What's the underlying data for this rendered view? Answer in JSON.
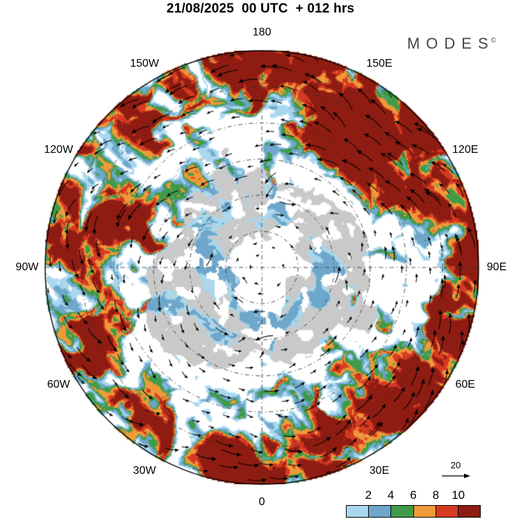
{
  "header": {
    "title": "21/08/2025  00 UTC  + 012 hrs"
  },
  "brand": {
    "text": "MODES",
    "symbol": "©"
  },
  "chart_data": {
    "type": "heatmap",
    "subtype": "polar-stereographic-map-with-wind-vectors",
    "title": "21/08/2025  00 UTC  + 012 hrs",
    "hemisphere": "south",
    "longitude_ticks": [
      {
        "label": "0",
        "lon": 0
      },
      {
        "label": "30E",
        "lon": 30
      },
      {
        "label": "60E",
        "lon": 60
      },
      {
        "label": "90E",
        "lon": 90
      },
      {
        "label": "120E",
        "lon": 120
      },
      {
        "label": "150E",
        "lon": 150
      },
      {
        "label": "180",
        "lon": 180
      },
      {
        "label": "150W",
        "lon": -150
      },
      {
        "label": "120W",
        "lon": -120
      },
      {
        "label": "90W",
        "lon": -90
      },
      {
        "label": "60W",
        "lon": -60
      },
      {
        "label": "30W",
        "lon": -30
      }
    ],
    "colorbar": {
      "tick_labels": [
        "2",
        "4",
        "6",
        "8",
        "10"
      ],
      "levels": [
        2,
        4,
        6,
        8,
        10
      ],
      "colors": [
        "#a9d8ee",
        "#6ea7cb",
        "#3f9b47",
        "#ef9a3a",
        "#d63a22",
        "#8e1c12"
      ]
    },
    "reference_vector": {
      "label": "20",
      "value": 20
    },
    "colors": {
      "land": "#c9c9c9",
      "background": "#ffffff",
      "graticule": "#333333",
      "vectors": "#000000"
    }
  }
}
